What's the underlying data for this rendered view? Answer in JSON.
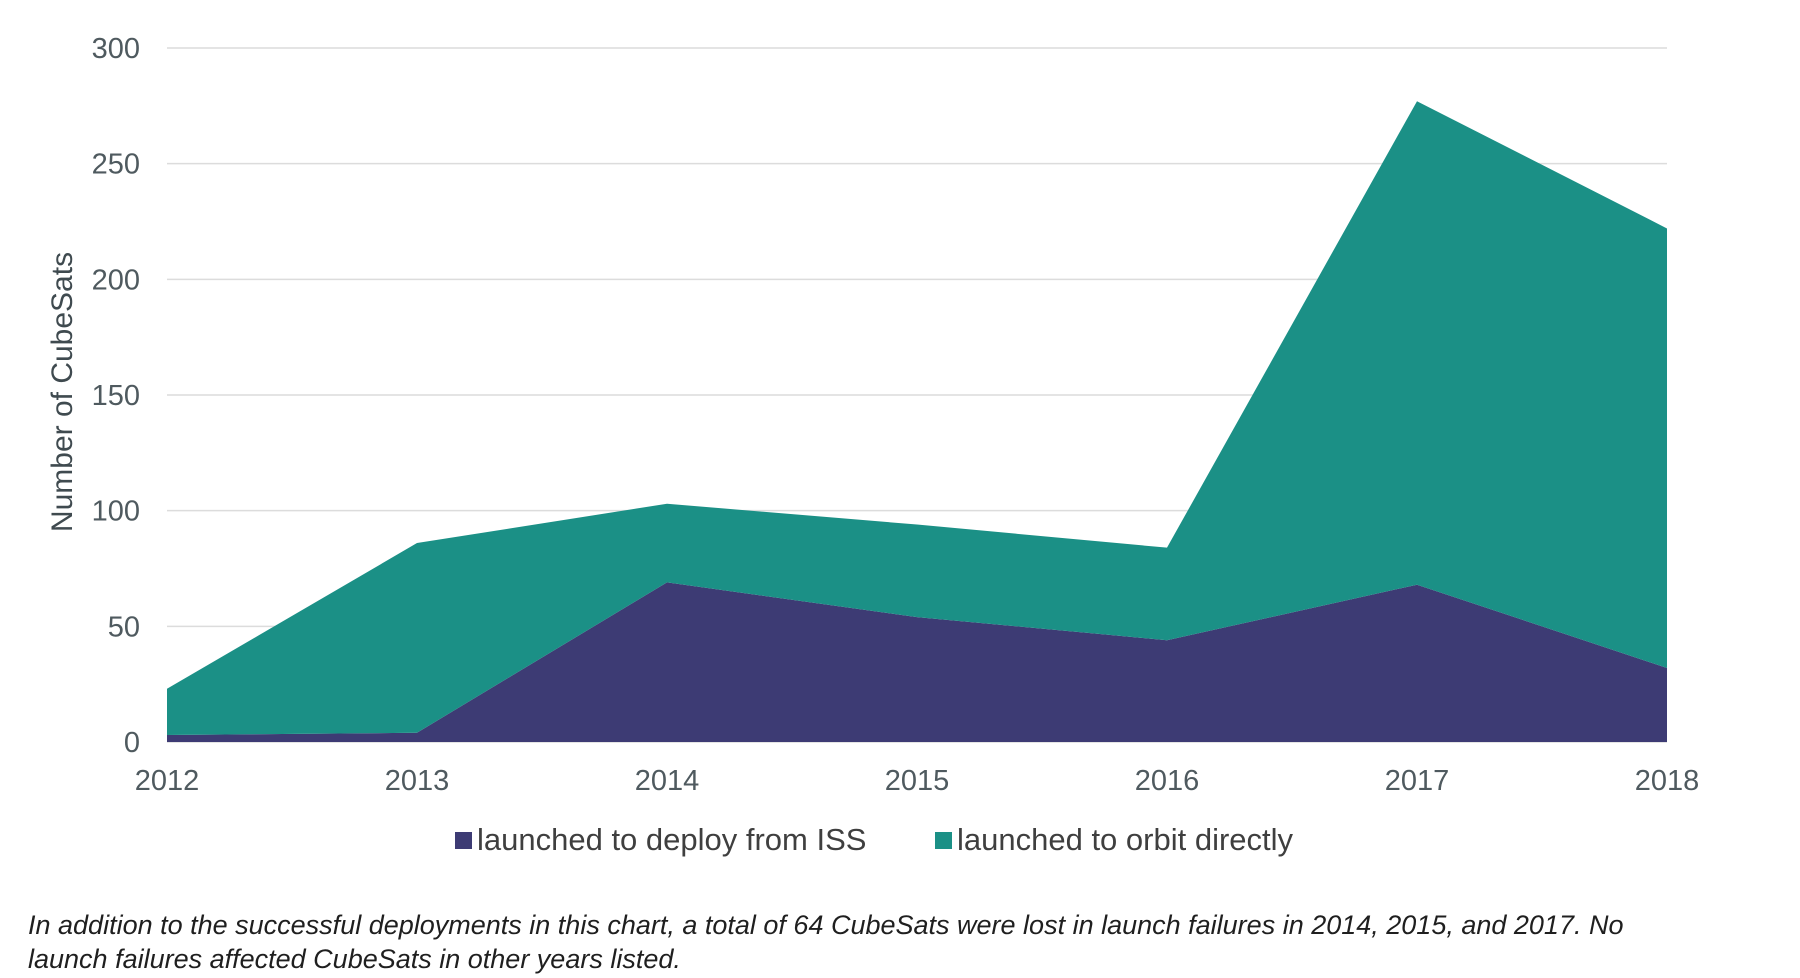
{
  "chart_data": {
    "type": "area",
    "stacked": true,
    "x": [
      "2012",
      "2013",
      "2014",
      "2015",
      "2016",
      "2017",
      "2018"
    ],
    "series": [
      {
        "name": "launched to deploy from ISS",
        "values": [
          3,
          4,
          69,
          54,
          44,
          68,
          32
        ],
        "color": "#3d3b74"
      },
      {
        "name": "launched to orbit directly",
        "values": [
          20,
          82,
          34,
          40,
          40,
          209,
          190
        ],
        "color": "#1b9086"
      }
    ],
    "ylabel": "Number of CubeSats",
    "ylim": [
      0,
      300
    ],
    "yticks": [
      0,
      50,
      100,
      150,
      200,
      250,
      300
    ],
    "grid": true,
    "legend": "bottom"
  },
  "footnote": "In addition to the successful deployments in this chart, a total of 64 CubeSats were lost in launch failures in 2014, 2015, and 2017. No launch failures affected CubeSats in other years listed."
}
